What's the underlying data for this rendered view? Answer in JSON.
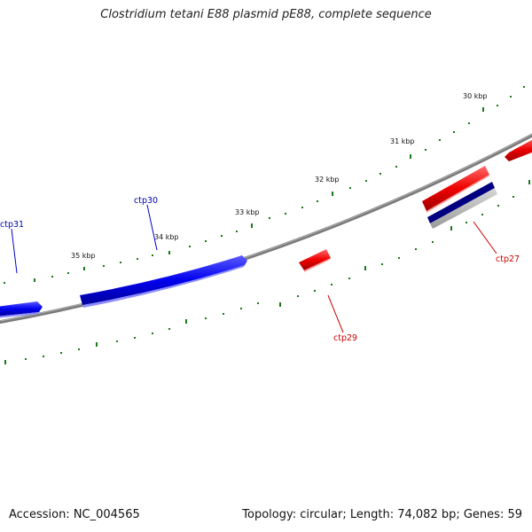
{
  "title": "Clostridium tetani E88 plasmid pE88, complete sequence",
  "footer": {
    "accession": "Accession: NC_004565",
    "summary": "Topology: circular; Length: 74,082 bp; Genes: 59"
  },
  "colors": {
    "backbone": "#808080",
    "tick": "#1a7a1a",
    "forward_gene": "#0000ee",
    "reverse_gene": "#ee0000",
    "rna_feature": "#000080"
  },
  "ticks": [
    {
      "label": "30 kbp"
    },
    {
      "label": "31 kbp"
    },
    {
      "label": "32 kbp"
    },
    {
      "label": "33 kbp"
    },
    {
      "label": "34 kbp"
    },
    {
      "label": "35 kbp"
    }
  ],
  "genes": [
    {
      "label": "ctp31",
      "strand": "forward"
    },
    {
      "label": "ctp30",
      "strand": "forward"
    },
    {
      "label": "ctp29",
      "strand": "reverse"
    },
    {
      "label": "ctp27",
      "strand": "reverse"
    }
  ]
}
